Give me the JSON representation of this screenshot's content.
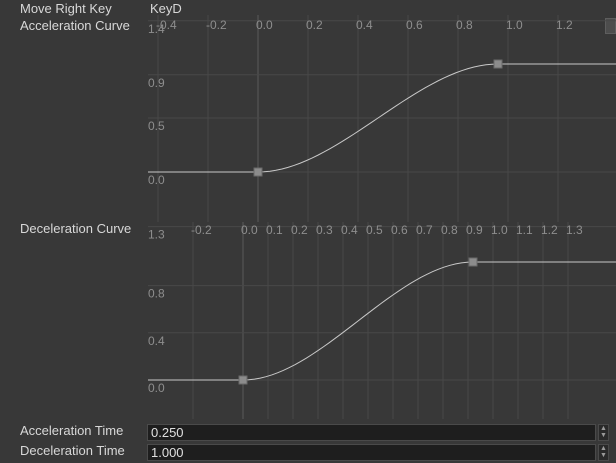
{
  "move_right_key": {
    "label": "Move Right Key",
    "value": "KeyD"
  },
  "acceleration_curve": {
    "label": "Acceleration Curve",
    "x_ticks": [
      "-0.4",
      "-0.2",
      "0.0",
      "0.2",
      "0.4",
      "0.6",
      "0.8",
      "1.0",
      "1.2"
    ],
    "y_ticks": [
      "1.4",
      "0.9",
      "0.5",
      "0.0"
    ],
    "points": [
      {
        "x": 0.0,
        "y": 0.0
      },
      {
        "x": 0.96,
        "y": 1.0
      }
    ]
  },
  "deceleration_curve": {
    "label": "Deceleration Curve",
    "x_ticks": [
      "-0.2",
      "0.0",
      "0.2",
      "0.4",
      "0.6",
      "0.8",
      "1.0",
      "1.2"
    ],
    "x_ticks_minor": [
      "0.1",
      "0.3",
      "0.5",
      "0.7",
      "0.9",
      "1.1",
      "1.3"
    ],
    "y_ticks": [
      "1.3",
      "0.8",
      "0.4",
      "0.0"
    ],
    "points": [
      {
        "x": 0.0,
        "y": 0.0
      },
      {
        "x": 0.92,
        "y": 1.0
      }
    ]
  },
  "acceleration_time": {
    "label": "Acceleration Time",
    "value": "0.250"
  },
  "deceleration_time": {
    "label": "Deceleration Time",
    "value": "1.000"
  },
  "colors": {
    "background": "#383838",
    "grid": "#484848",
    "curve": "#c8c8c8",
    "handle": "#8c8c8c"
  }
}
